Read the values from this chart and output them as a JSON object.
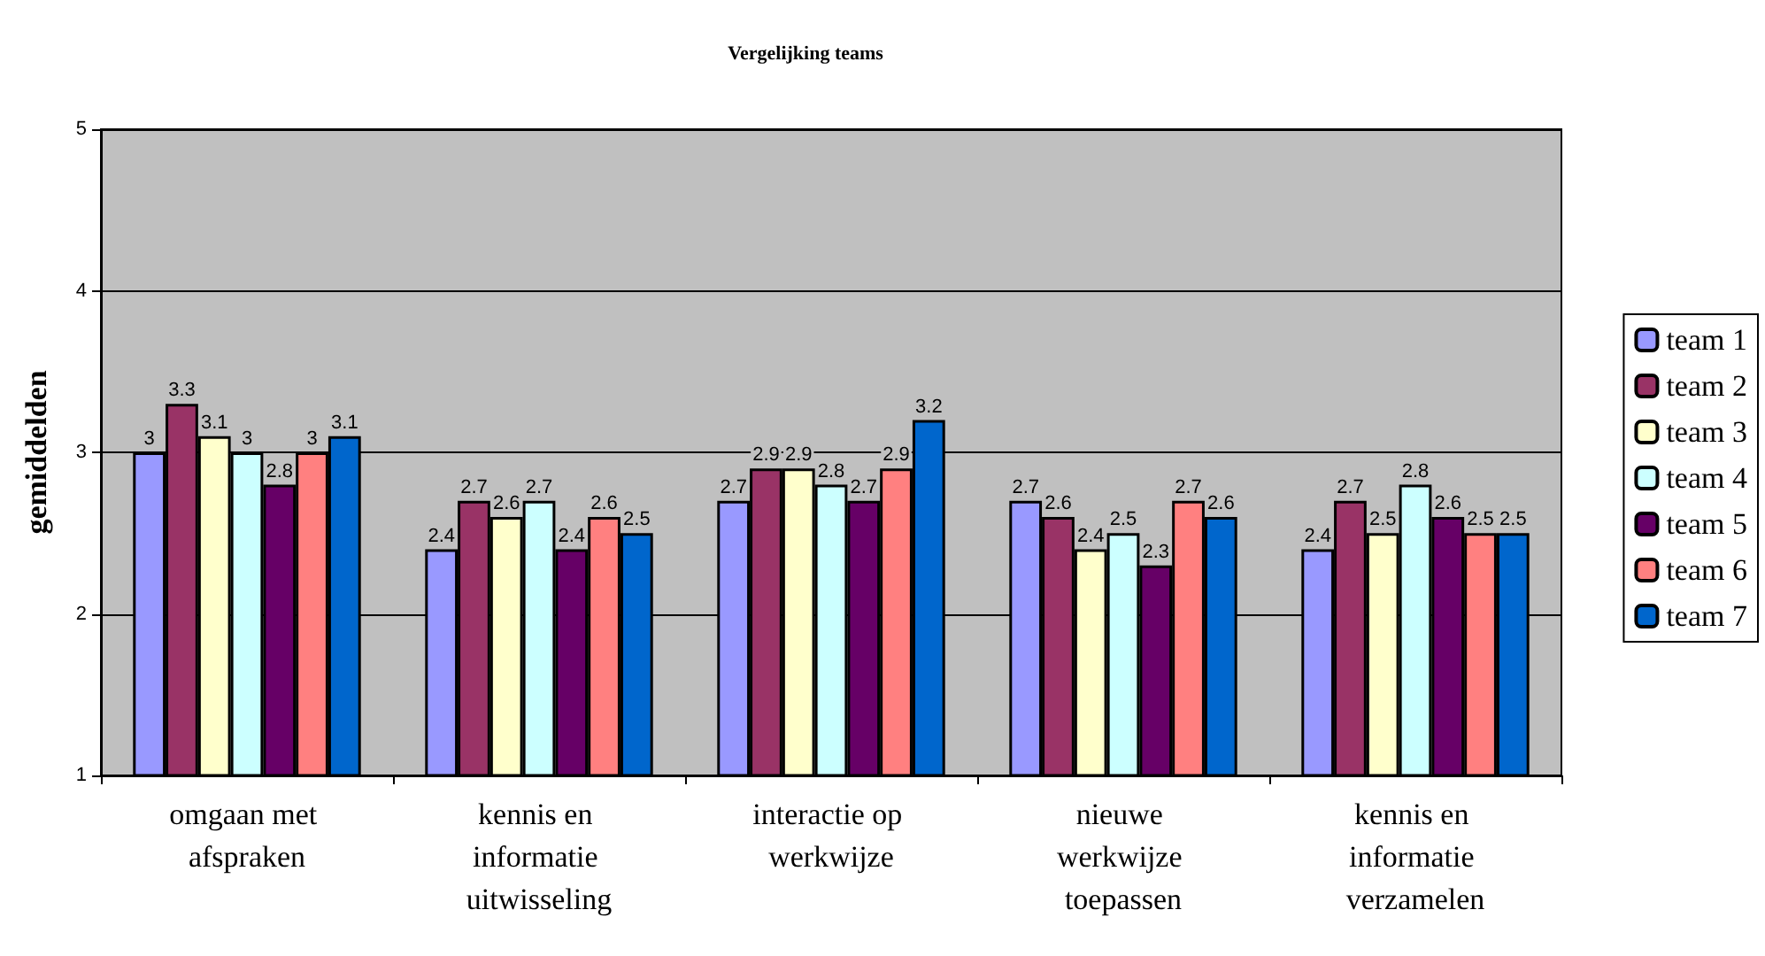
{
  "chart_data": {
    "type": "bar",
    "title": "Vergelijking teams",
    "ylabel": "gemiddelden",
    "categories": [
      "omgaan met afspraken",
      "kennis en informatie uitwisseling",
      "interactie op werkwijze",
      "nieuwe werkwijze toepassen",
      "kennis en informatie verzamelen"
    ],
    "series": [
      {
        "name": "team 1",
        "color": "#9999ff",
        "values": [
          3,
          2.4,
          2.7,
          2.7,
          2.4
        ]
      },
      {
        "name": "team 2",
        "color": "#993366",
        "values": [
          3.3,
          2.7,
          2.9,
          2.6,
          2.7
        ]
      },
      {
        "name": "team 3",
        "color": "#ffffcc",
        "values": [
          3.1,
          2.6,
          2.9,
          2.4,
          2.5
        ]
      },
      {
        "name": "team 4",
        "color": "#ccffff",
        "values": [
          3,
          2.7,
          2.8,
          2.5,
          2.8
        ]
      },
      {
        "name": "team 5",
        "color": "#660066",
        "values": [
          2.8,
          2.4,
          2.7,
          2.3,
          2.6
        ]
      },
      {
        "name": "team 6",
        "color": "#ff8080",
        "values": [
          3,
          2.6,
          2.9,
          2.7,
          2.5
        ]
      },
      {
        "name": "team 7",
        "color": "#0066cc",
        "values": [
          3.1,
          2.5,
          3.2,
          2.6,
          2.5
        ]
      }
    ],
    "ylim": [
      1,
      5
    ],
    "yticks": [
      1,
      2,
      3,
      4,
      5
    ],
    "grid": "y",
    "legend": "right",
    "data_labels": true
  }
}
